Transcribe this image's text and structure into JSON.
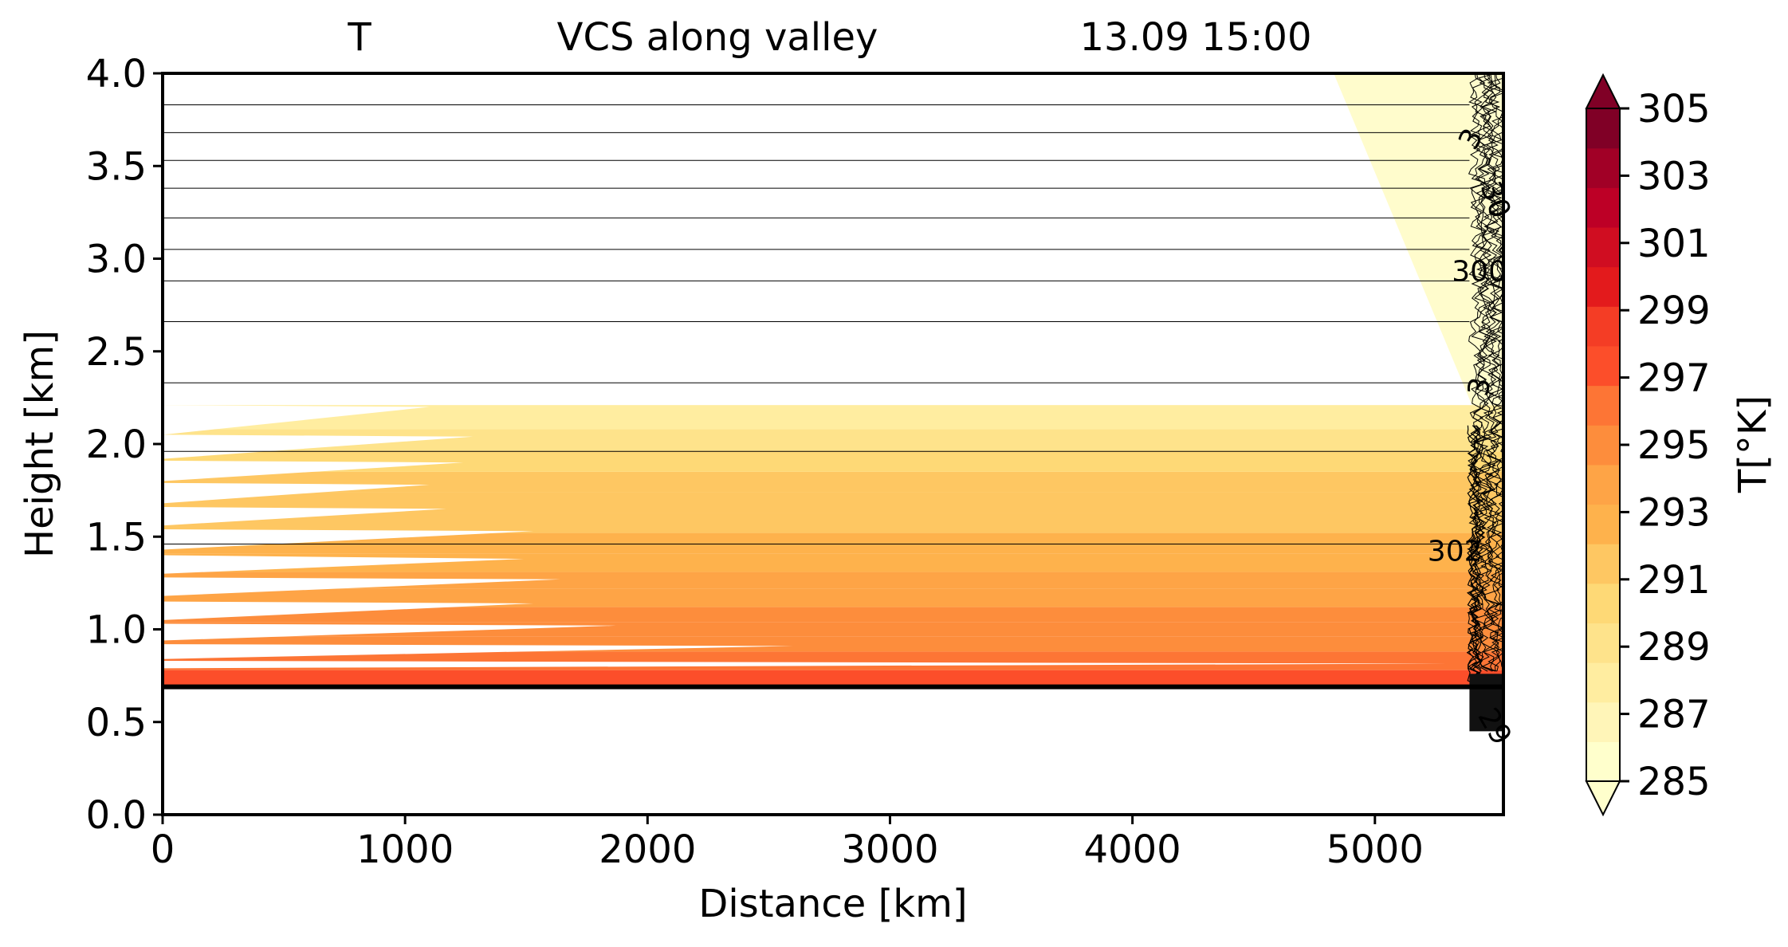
{
  "chart_data": {
    "type": "contour",
    "title": {
      "variable": "T",
      "section": "VCS along valley",
      "datetime": "13.09 15:00"
    },
    "xlabel": "Distance [km]",
    "ylabel": "Height [km]",
    "xlim": [
      0,
      5530
    ],
    "ylim": [
      0.0,
      4.0
    ],
    "xticks": [
      0,
      1000,
      2000,
      3000,
      4000,
      5000
    ],
    "xtick_labels": [
      "0",
      "1000",
      "2000",
      "3000",
      "4000",
      "5000"
    ],
    "yticks": [
      0.0,
      0.5,
      1.0,
      1.5,
      2.0,
      2.5,
      3.0,
      3.5,
      4.0
    ],
    "ytick_labels": [
      "0.0",
      "0.5",
      "1.0",
      "1.5",
      "2.0",
      "2.5",
      "3.0",
      "3.5",
      "4.0"
    ],
    "colorbar": {
      "label": "T[°K]",
      "min": 285,
      "max": 305,
      "extend": "both",
      "ticks": [
        285,
        287,
        289,
        291,
        293,
        295,
        297,
        299,
        301,
        303,
        305
      ],
      "tick_labels": [
        "285",
        "287",
        "289",
        "291",
        "293",
        "295",
        "297",
        "299",
        "301",
        "303",
        "305"
      ],
      "colormap": "YlOrRd",
      "colors": [
        "#ffffcc",
        "#fff5b8",
        "#ffeda0",
        "#fee38b",
        "#fed976",
        "#fec762",
        "#feb24c",
        "#fea446",
        "#fd8d3c",
        "#fd7535",
        "#fc4e2a",
        "#f43d25",
        "#e31a1c",
        "#d00d21",
        "#bd0026",
        "#a10026",
        "#800026"
      ],
      "under_color": "#ffffcc",
      "over_color": "#800026"
    },
    "temperature_profile": {
      "heights_km": [
        0.78,
        0.88,
        0.96,
        1.04,
        1.12,
        1.22,
        1.31,
        1.41,
        1.52,
        1.63,
        1.74,
        1.85,
        1.96,
        2.08,
        2.21
      ],
      "values_K": [
        297,
        296,
        295.5,
        295,
        294.5,
        294,
        293.5,
        293,
        292.5,
        292,
        291.5,
        291,
        290,
        289,
        287.5
      ]
    },
    "ground_height_km": 0.69,
    "contour_lines_heights_km": [
      3.83,
      3.68,
      3.53,
      3.38,
      3.22,
      3.05,
      2.88,
      2.66,
      2.33,
      1.96,
      1.46
    ],
    "contour_labels": [
      "3",
      "30",
      "300",
      "3",
      "302",
      "29"
    ],
    "mountain_wedge": {
      "x_top_km": 4830,
      "x_bottom_km": 5400,
      "top_km": 4.0,
      "bottom_km": 2.21
    }
  }
}
